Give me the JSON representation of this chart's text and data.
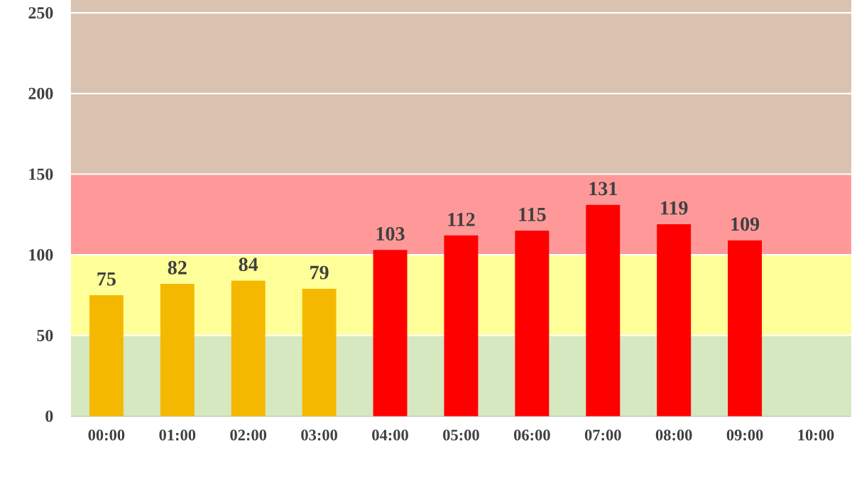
{
  "chart_data": {
    "type": "bar",
    "categories": [
      "00:00",
      "01:00",
      "02:00",
      "03:00",
      "04:00",
      "05:00",
      "06:00",
      "07:00",
      "08:00",
      "09:00",
      "10:00"
    ],
    "values": [
      75,
      82,
      84,
      79,
      103,
      112,
      115,
      131,
      119,
      109,
      null
    ],
    "colors": [
      "#f5b800",
      "#f5b800",
      "#f5b800",
      "#f5b800",
      "#ff0000",
      "#ff0000",
      "#ff0000",
      "#ff0000",
      "#ff0000",
      "#ff0000",
      "#ff0000"
    ],
    "ylim": [
      0,
      258
    ],
    "yticks": [
      0,
      50,
      100,
      150,
      200,
      250
    ],
    "bands": [
      {
        "axis": "y",
        "from": 0,
        "to": 50,
        "color": "#d5e8c0"
      },
      {
        "axis": "y",
        "from": 50,
        "to": 100,
        "color": "#ffff99"
      },
      {
        "axis": "y",
        "from": 100,
        "to": 150,
        "color": "#ff9999"
      },
      {
        "axis": "y",
        "from": 150,
        "to": 258,
        "color": "#d9c3b0"
      }
    ],
    "grid": "y",
    "data_labels": true
  }
}
